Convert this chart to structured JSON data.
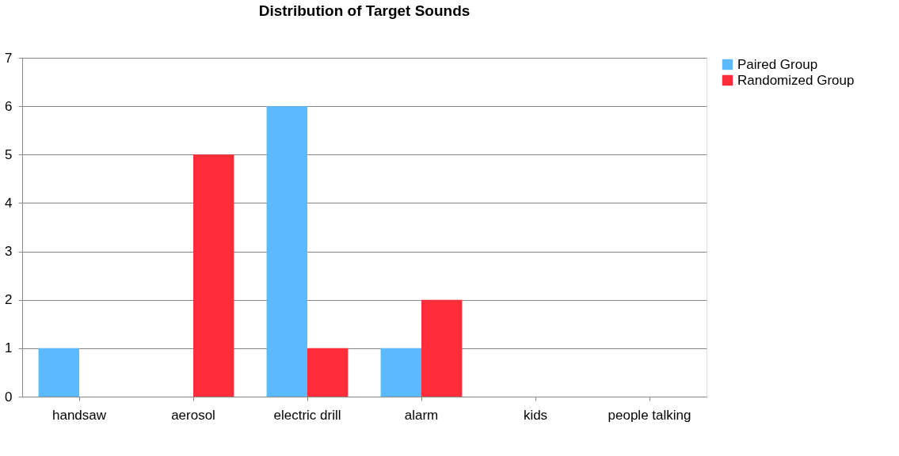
{
  "chart_data": {
    "type": "bar",
    "title": "Distribution of Target Sounds",
    "categories": [
      "handsaw",
      "aerosol",
      "electric drill",
      "alarm",
      "kids",
      "people talking"
    ],
    "series": [
      {
        "name": "Paired Group",
        "color": "#5ab9ff",
        "values": [
          1,
          0,
          6,
          1,
          0,
          0
        ]
      },
      {
        "name": "Randomized Group",
        "color": "#ff2d3a",
        "values": [
          0,
          5,
          1,
          2,
          0,
          0
        ]
      }
    ],
    "ylim": [
      0,
      7
    ],
    "yticks": [
      0,
      1,
      2,
      3,
      4,
      5,
      6,
      7
    ],
    "grid": "y",
    "legend": "right"
  }
}
